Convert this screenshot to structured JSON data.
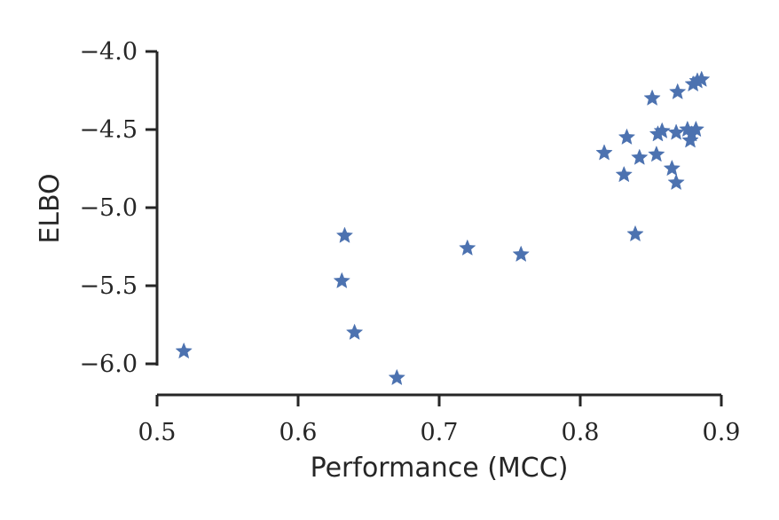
{
  "chart_data": {
    "type": "scatter",
    "title": "",
    "xlabel": "Performance (MCC)",
    "ylabel": "ELBO",
    "xlim": [
      0.5,
      0.9
    ],
    "ylim": [
      -6.2,
      -4.0
    ],
    "x_ticks": [
      0.5,
      0.6,
      0.7,
      0.8,
      0.9
    ],
    "x_tick_labels": [
      "0.5",
      "0.6",
      "0.7",
      "0.8",
      "0.9"
    ],
    "y_ticks": [
      -4.0,
      -4.5,
      -5.0,
      -5.5,
      -6.0
    ],
    "y_tick_labels": [
      "−4.0",
      "−4.5",
      "−5.0",
      "−5.5",
      "−6.0"
    ],
    "grid": false,
    "legend": "none",
    "marker": "star",
    "color": "#4c72b0",
    "series": [
      {
        "points": [
          {
            "x": 0.519,
            "y": -5.92
          },
          {
            "x": 0.631,
            "y": -5.47
          },
          {
            "x": 0.633,
            "y": -5.18
          },
          {
            "x": 0.64,
            "y": -5.8
          },
          {
            "x": 0.67,
            "y": -6.09
          },
          {
            "x": 0.72,
            "y": -5.26
          },
          {
            "x": 0.758,
            "y": -5.3
          },
          {
            "x": 0.817,
            "y": -4.65
          },
          {
            "x": 0.831,
            "y": -4.79
          },
          {
            "x": 0.833,
            "y": -4.55
          },
          {
            "x": 0.839,
            "y": -5.17
          },
          {
            "x": 0.842,
            "y": -4.68
          },
          {
            "x": 0.851,
            "y": -4.3
          },
          {
            "x": 0.854,
            "y": -4.66
          },
          {
            "x": 0.855,
            "y": -4.53
          },
          {
            "x": 0.858,
            "y": -4.51
          },
          {
            "x": 0.865,
            "y": -4.75
          },
          {
            "x": 0.868,
            "y": -4.84
          },
          {
            "x": 0.868,
            "y": -4.52
          },
          {
            "x": 0.869,
            "y": -4.26
          },
          {
            "x": 0.876,
            "y": -4.5
          },
          {
            "x": 0.878,
            "y": -4.57
          },
          {
            "x": 0.879,
            "y": -4.53
          },
          {
            "x": 0.88,
            "y": -4.21
          },
          {
            "x": 0.882,
            "y": -4.5
          },
          {
            "x": 0.883,
            "y": -4.19
          },
          {
            "x": 0.886,
            "y": -4.18
          }
        ]
      }
    ]
  }
}
